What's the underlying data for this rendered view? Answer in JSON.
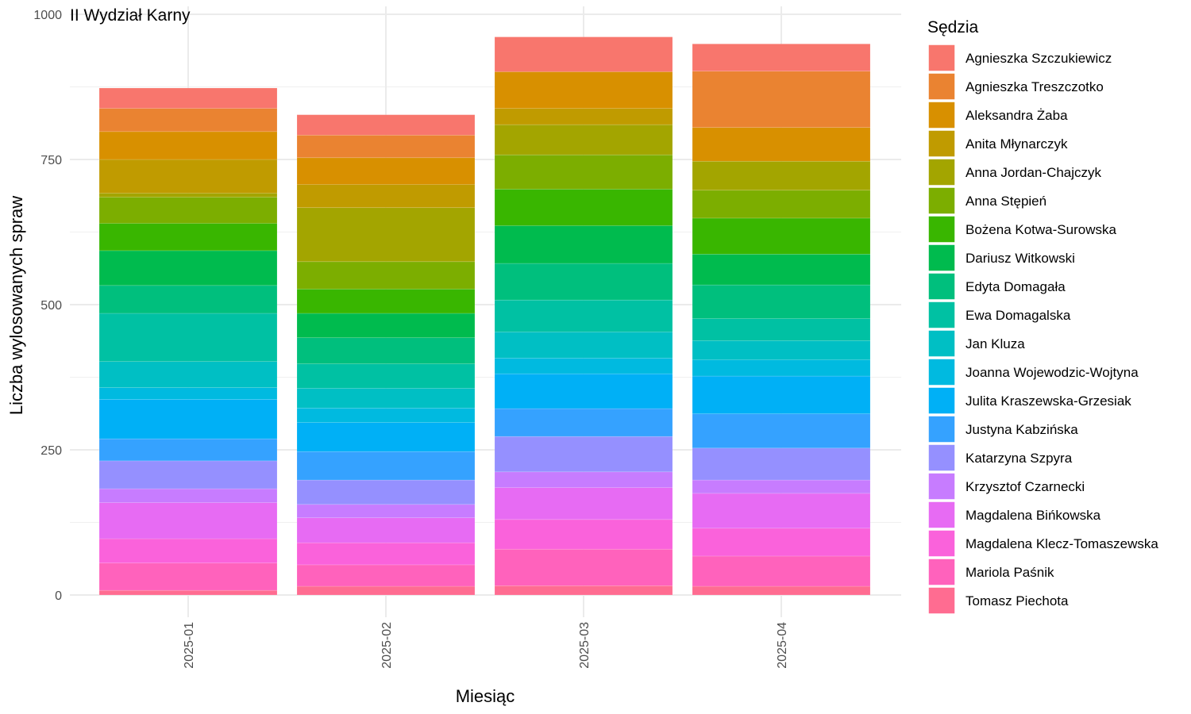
{
  "chart_data": {
    "type": "bar",
    "stacked": true,
    "title": "II Wydział Karny",
    "xlabel": "Miesiąc",
    "ylabel": "Liczba wylosowanych spraw",
    "ylim": [
      0,
      1000
    ],
    "yticks": [
      0,
      250,
      500,
      750,
      1000
    ],
    "grid": true,
    "legend_title": "Sędzia",
    "legend_position": "right",
    "categories": [
      "2025-01",
      "2025-02",
      "2025-03",
      "2025-04"
    ],
    "series": [
      {
        "name": "Agnieszka Szczukiewicz",
        "color": "#F8766D",
        "values": [
          35,
          35,
          60,
          47
        ]
      },
      {
        "name": "Agnieszka Treszczotko",
        "color": "#EA8331",
        "values": [
          40,
          39,
          0,
          97
        ]
      },
      {
        "name": "Aleksandra Żaba",
        "color": "#D89000",
        "values": [
          48,
          46,
          63,
          58
        ]
      },
      {
        "name": "Anita Młynarczyk",
        "color": "#C09B00",
        "values": [
          58,
          40,
          28,
          0
        ]
      },
      {
        "name": "Anna Jordan-Chajczyk",
        "color": "#A3A500",
        "values": [
          7,
          93,
          52,
          50
        ]
      },
      {
        "name": "Anna Stępień",
        "color": "#7CAE00",
        "values": [
          45,
          47,
          59,
          48
        ]
      },
      {
        "name": "Bożena Kotwa-Surowska",
        "color": "#39B600",
        "values": [
          47,
          42,
          63,
          62
        ]
      },
      {
        "name": "Dariusz Witkowski",
        "color": "#00BB4E",
        "values": [
          60,
          42,
          65,
          53
        ]
      },
      {
        "name": "Edyta Domagała",
        "color": "#00BF7D",
        "values": [
          48,
          45,
          63,
          58
        ]
      },
      {
        "name": "Ewa Domagalska",
        "color": "#00C1A3",
        "values": [
          83,
          42,
          55,
          38
        ]
      },
      {
        "name": "Jan Kluza",
        "color": "#00BFC4",
        "values": [
          45,
          34,
          45,
          33
        ]
      },
      {
        "name": "Joanna Wojewodzic-Wojtyna",
        "color": "#00BAE0",
        "values": [
          20,
          25,
          27,
          28
        ]
      },
      {
        "name": "Julita Kraszewska-Grzesiak",
        "color": "#00B0F6",
        "values": [
          68,
          50,
          60,
          65
        ]
      },
      {
        "name": "Justyna Kabzińska",
        "color": "#35A2FF",
        "values": [
          38,
          49,
          48,
          59
        ]
      },
      {
        "name": "Katarzyna Szpyra",
        "color": "#9590FF",
        "values": [
          48,
          42,
          61,
          55
        ]
      },
      {
        "name": "Krzysztof Czarnecki",
        "color": "#C77CFF",
        "values": [
          24,
          23,
          27,
          23
        ]
      },
      {
        "name": "Magdalena Bińkowska",
        "color": "#E76BF3",
        "values": [
          62,
          43,
          55,
          60
        ]
      },
      {
        "name": "Magdalena Klecz-Tomaszewska",
        "color": "#FA62DB",
        "values": [
          42,
          38,
          51,
          48
        ]
      },
      {
        "name": "Mariola Paśnik",
        "color": "#FF62BC",
        "values": [
          47,
          37,
          63,
          52
        ]
      },
      {
        "name": "Tomasz Piechota",
        "color": "#FF6C91",
        "values": [
          8,
          15,
          16,
          15
        ]
      }
    ]
  }
}
